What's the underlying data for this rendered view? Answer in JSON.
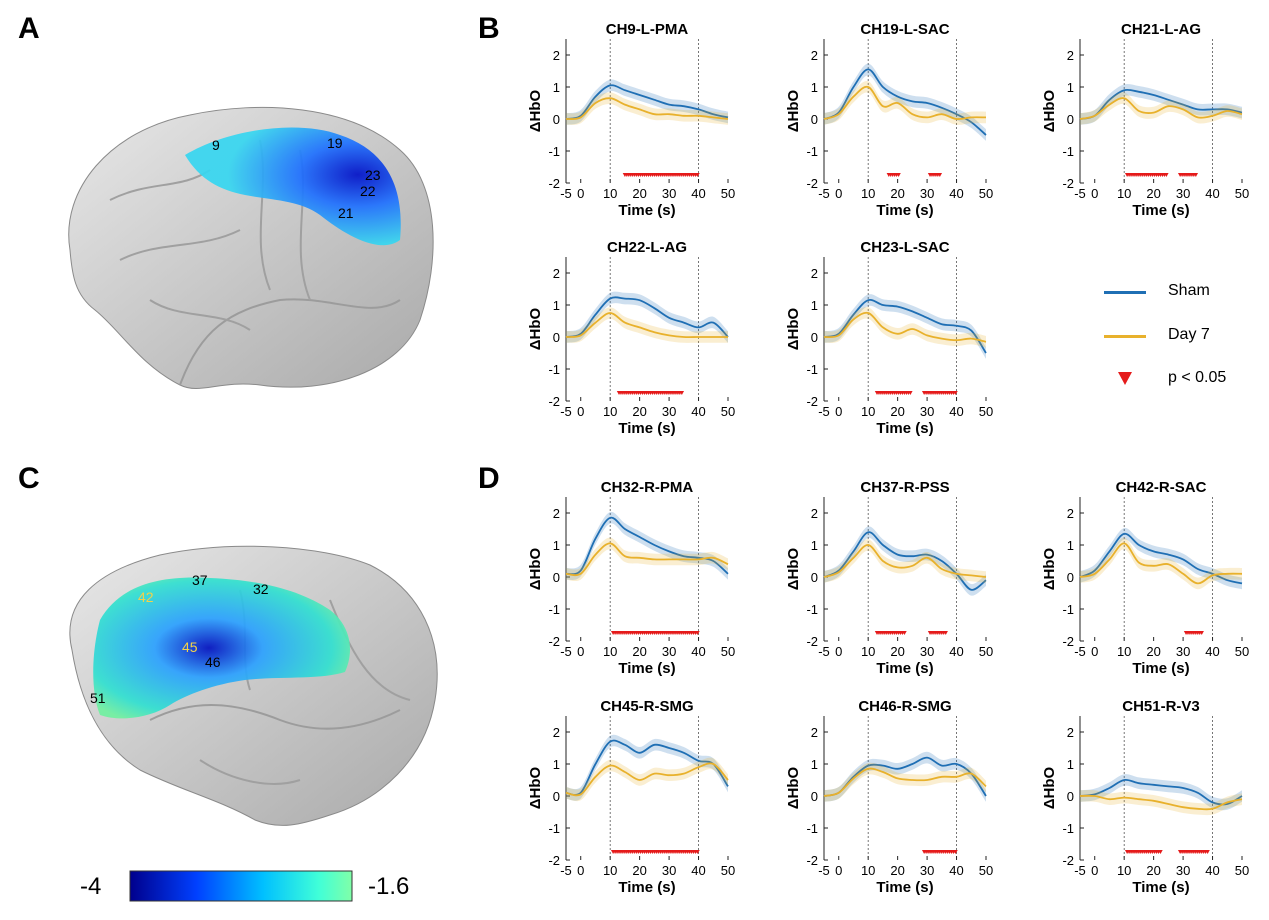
{
  "panels": {
    "A": "A",
    "B": "B",
    "C": "C",
    "D": "D"
  },
  "brain_a": {
    "channel_labels": [
      "9",
      "19",
      "23",
      "22",
      "21"
    ]
  },
  "brain_c": {
    "channel_labels": [
      "42",
      "37",
      "32",
      "45",
      "46",
      "51"
    ]
  },
  "colorbar": {
    "min_label": "-4",
    "max_label": "-1.6",
    "colors": [
      "#00008c",
      "#0040ff",
      "#00c0ff",
      "#40ffd8",
      "#80ffa8"
    ]
  },
  "legend": {
    "sham": "Sham",
    "day7": "Day 7",
    "sig": "p < 0.05",
    "sham_color": "#1f6fb4",
    "day7_color": "#e8b12c",
    "sig_color": "#e51b1b"
  },
  "chart_data": [
    {
      "type": "line",
      "panel": "B",
      "title": "CH9-L-PMA",
      "xlabel": "Time (s)",
      "ylabel": "ΔHbO",
      "xlim": [
        -5,
        50
      ],
      "ylim": [
        -2,
        2.5
      ],
      "x": [
        -5,
        0,
        5,
        10,
        15,
        20,
        25,
        30,
        35,
        40,
        45,
        50
      ],
      "series": [
        {
          "name": "Sham",
          "values": [
            0,
            0.1,
            0.7,
            1.05,
            0.9,
            0.75,
            0.6,
            0.45,
            0.4,
            0.3,
            0.15,
            0.05
          ]
        },
        {
          "name": "Day 7",
          "values": [
            0,
            0.05,
            0.5,
            0.65,
            0.45,
            0.3,
            0.15,
            0.15,
            0.1,
            0.1,
            0.05,
            0
          ]
        }
      ],
      "significant_x": [
        15,
        17,
        19,
        21,
        23,
        25,
        27,
        29,
        31,
        33,
        35,
        37,
        39
      ]
    },
    {
      "type": "line",
      "panel": "B",
      "title": "CH19-L-SAC",
      "xlabel": "Time (s)",
      "ylabel": "ΔHbO",
      "xlim": [
        -5,
        50
      ],
      "ylim": [
        -2,
        2.5
      ],
      "x": [
        -5,
        0,
        5,
        10,
        15,
        20,
        25,
        30,
        35,
        40,
        45,
        50
      ],
      "series": [
        {
          "name": "Sham",
          "values": [
            0,
            0.2,
            1.0,
            1.55,
            1.0,
            0.7,
            0.55,
            0.5,
            0.35,
            0.15,
            -0.1,
            -0.5
          ]
        },
        {
          "name": "Day 7",
          "values": [
            0,
            0.15,
            0.7,
            1.0,
            0.4,
            0.5,
            0.15,
            0.05,
            0.15,
            0.0,
            0.05,
            0.05
          ]
        }
      ],
      "significant_x": [
        17,
        19,
        31,
        33
      ]
    },
    {
      "type": "line",
      "panel": "B",
      "title": "CH21-L-AG",
      "xlabel": "Time (s)",
      "ylabel": "ΔHbO",
      "xlim": [
        -5,
        50
      ],
      "ylim": [
        -2,
        2.5
      ],
      "x": [
        -5,
        0,
        5,
        10,
        15,
        20,
        25,
        30,
        35,
        40,
        45,
        50
      ],
      "series": [
        {
          "name": "Sham",
          "values": [
            0,
            0.1,
            0.6,
            0.9,
            0.85,
            0.75,
            0.6,
            0.45,
            0.3,
            0.3,
            0.3,
            0.2
          ]
        },
        {
          "name": "Day 7",
          "values": [
            0,
            0.1,
            0.45,
            0.65,
            0.25,
            0.2,
            0.4,
            0.3,
            0.05,
            0.1,
            0.25,
            0.15
          ]
        }
      ],
      "significant_x": [
        11,
        13,
        15,
        17,
        19,
        21,
        23,
        29,
        31,
        33
      ]
    },
    {
      "type": "line",
      "panel": "B",
      "title": "CH22-L-AG",
      "xlabel": "Time (s)",
      "ylabel": "ΔHbO",
      "xlim": [
        -5,
        50
      ],
      "ylim": [
        -2,
        2.5
      ],
      "x": [
        -5,
        0,
        5,
        10,
        15,
        20,
        25,
        30,
        35,
        40,
        45,
        50
      ],
      "series": [
        {
          "name": "Sham",
          "values": [
            0,
            0.1,
            0.7,
            1.2,
            1.2,
            1.15,
            0.9,
            0.6,
            0.45,
            0.3,
            0.45,
            0.0
          ]
        },
        {
          "name": "Day 7",
          "values": [
            0,
            0.05,
            0.45,
            0.75,
            0.45,
            0.3,
            0.15,
            0.05,
            0.0,
            0.0,
            0.0,
            0.0
          ]
        }
      ],
      "significant_x": [
        13,
        15,
        17,
        19,
        21,
        23,
        25,
        27,
        29,
        31,
        33
      ]
    },
    {
      "type": "line",
      "panel": "B",
      "title": "CH23-L-SAC",
      "xlabel": "Time (s)",
      "ylabel": "ΔHbO",
      "xlim": [
        -5,
        50
      ],
      "ylim": [
        -2,
        2.5
      ],
      "x": [
        -5,
        0,
        5,
        10,
        15,
        20,
        25,
        30,
        35,
        40,
        45,
        50
      ],
      "series": [
        {
          "name": "Sham",
          "values": [
            0,
            0.1,
            0.7,
            1.15,
            1.0,
            0.95,
            0.8,
            0.6,
            0.4,
            0.35,
            0.2,
            -0.5
          ]
        },
        {
          "name": "Day 7",
          "values": [
            0,
            0.05,
            0.55,
            0.75,
            0.3,
            0.1,
            0.25,
            0.05,
            -0.05,
            -0.1,
            -0.05,
            -0.15
          ]
        }
      ],
      "significant_x": [
        13,
        15,
        17,
        19,
        21,
        23,
        29,
        31,
        33,
        35,
        37,
        39
      ]
    },
    {
      "type": "line",
      "panel": "D",
      "title": "CH32-R-PMA",
      "xlabel": "Time (s)",
      "ylabel": "ΔHbO",
      "xlim": [
        -5,
        50
      ],
      "ylim": [
        -2,
        2.5
      ],
      "x": [
        -5,
        0,
        5,
        10,
        15,
        20,
        25,
        30,
        35,
        40,
        45,
        50
      ],
      "series": [
        {
          "name": "Sham",
          "values": [
            0.1,
            0.2,
            1.2,
            1.85,
            1.5,
            1.25,
            1.0,
            0.8,
            0.65,
            0.6,
            0.5,
            0.1
          ]
        },
        {
          "name": "Day 7",
          "values": [
            0.1,
            0.1,
            0.7,
            1.05,
            0.65,
            0.6,
            0.55,
            0.55,
            0.55,
            0.55,
            0.6,
            0.4
          ]
        }
      ],
      "significant_x": [
        11,
        13,
        15,
        17,
        19,
        21,
        23,
        25,
        27,
        29,
        31,
        33,
        35,
        37,
        39
      ]
    },
    {
      "type": "line",
      "panel": "D",
      "title": "CH37-R-PSS",
      "xlabel": "Time (s)",
      "ylabel": "ΔHbO",
      "xlim": [
        -5,
        50
      ],
      "ylim": [
        -2,
        2.5
      ],
      "x": [
        -5,
        0,
        5,
        10,
        15,
        20,
        25,
        30,
        35,
        40,
        45,
        50
      ],
      "series": [
        {
          "name": "Sham",
          "values": [
            0,
            0.2,
            0.8,
            1.4,
            1.0,
            0.7,
            0.65,
            0.7,
            0.5,
            0.1,
            -0.4,
            -0.1
          ]
        },
        {
          "name": "Day 7",
          "values": [
            0,
            0.15,
            0.6,
            1.0,
            0.5,
            0.3,
            0.35,
            0.6,
            0.25,
            0.1,
            0.05,
            0.0
          ]
        }
      ],
      "significant_x": [
        13,
        15,
        17,
        19,
        21,
        31,
        33,
        35
      ]
    },
    {
      "type": "line",
      "panel": "D",
      "title": "CH42-R-SAC",
      "xlabel": "Time (s)",
      "ylabel": "ΔHbO",
      "xlim": [
        -5,
        50
      ],
      "ylim": [
        -2,
        2.5
      ],
      "x": [
        -5,
        0,
        5,
        10,
        15,
        20,
        25,
        30,
        35,
        40,
        45,
        50
      ],
      "series": [
        {
          "name": "Sham",
          "values": [
            0,
            0.2,
            0.8,
            1.35,
            1.0,
            0.8,
            0.7,
            0.55,
            0.25,
            0.1,
            -0.1,
            -0.2
          ]
        },
        {
          "name": "Day 7",
          "values": [
            0,
            0.1,
            0.55,
            1.05,
            0.45,
            0.35,
            0.4,
            0.1,
            -0.2,
            0.05,
            0.1,
            0.1
          ]
        }
      ],
      "significant_x": [
        31,
        33,
        35
      ]
    },
    {
      "type": "line",
      "panel": "D",
      "title": "CH45-R-SMG",
      "xlabel": "Time (s)",
      "ylabel": "ΔHbO",
      "xlim": [
        -5,
        50
      ],
      "ylim": [
        -2,
        2.5
      ],
      "x": [
        -5,
        0,
        5,
        10,
        15,
        20,
        25,
        30,
        35,
        40,
        45,
        50
      ],
      "series": [
        {
          "name": "Sham",
          "values": [
            0.1,
            0.1,
            1.0,
            1.7,
            1.6,
            1.35,
            1.6,
            1.5,
            1.35,
            1.1,
            1.0,
            0.3
          ]
        },
        {
          "name": "Day 7",
          "values": [
            0.1,
            0.05,
            0.6,
            0.95,
            0.75,
            0.5,
            0.7,
            0.65,
            0.7,
            0.9,
            1.0,
            0.5
          ]
        }
      ],
      "significant_x": [
        11,
        13,
        15,
        17,
        19,
        21,
        23,
        25,
        27,
        29,
        31,
        33,
        35,
        37,
        39
      ]
    },
    {
      "type": "line",
      "panel": "D",
      "title": "CH46-R-SMG",
      "xlabel": "Time (s)",
      "ylabel": "ΔHbO",
      "xlim": [
        -5,
        50
      ],
      "ylim": [
        -2,
        2.5
      ],
      "x": [
        -5,
        0,
        5,
        10,
        15,
        20,
        25,
        30,
        35,
        40,
        45,
        50
      ],
      "series": [
        {
          "name": "Sham",
          "values": [
            0,
            0.1,
            0.6,
            0.95,
            0.95,
            0.85,
            1.0,
            1.2,
            0.95,
            1.0,
            0.7,
            0.0
          ]
        },
        {
          "name": "Day 7",
          "values": [
            0,
            0.1,
            0.55,
            0.85,
            0.75,
            0.55,
            0.5,
            0.5,
            0.6,
            0.6,
            0.7,
            0.3
          ]
        }
      ],
      "significant_x": [
        29,
        31,
        33,
        35,
        37,
        39
      ]
    },
    {
      "type": "line",
      "panel": "D",
      "title": "CH51-R-V3",
      "xlabel": "Time (s)",
      "ylabel": "ΔHbO",
      "xlim": [
        -5,
        50
      ],
      "ylim": [
        -2,
        2.5
      ],
      "x": [
        -5,
        0,
        5,
        10,
        15,
        20,
        25,
        30,
        35,
        40,
        45,
        50
      ],
      "series": [
        {
          "name": "Sham",
          "values": [
            0,
            0.05,
            0.25,
            0.5,
            0.4,
            0.35,
            0.3,
            0.25,
            0.1,
            -0.2,
            -0.25,
            0.0
          ]
        },
        {
          "name": "Day 7",
          "values": [
            0,
            0.0,
            -0.1,
            -0.05,
            -0.1,
            -0.15,
            -0.25,
            -0.35,
            -0.4,
            -0.4,
            -0.2,
            -0.1
          ]
        }
      ],
      "significant_x": [
        11,
        13,
        15,
        17,
        19,
        21,
        29,
        31,
        33,
        35,
        37
      ]
    }
  ]
}
